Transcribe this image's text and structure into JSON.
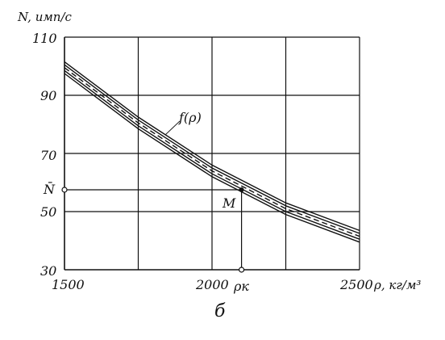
{
  "chart_data": {
    "type": "line",
    "ylabel": "N, имп/с",
    "xlabel": "ρ, кг/м³",
    "x_ticks": [
      "1500",
      "2000",
      "2500"
    ],
    "y_ticks": [
      "110",
      "90",
      "70",
      "50",
      "30"
    ],
    "xlim": [
      1500,
      2500
    ],
    "ylim": [
      30,
      110
    ],
    "grid": true,
    "series": [
      {
        "style": "solid",
        "x": [
          1500,
          1750,
          2000,
          2250,
          2500
        ],
        "y": [
          101.5,
          82.5,
          66.0,
          53.0,
          43.5
        ]
      },
      {
        "style": "solid",
        "x": [
          1500,
          1750,
          2000,
          2250,
          2500
        ],
        "y": [
          100.5,
          81.5,
          65.0,
          52.0,
          42.5
        ]
      },
      {
        "style": "dashed",
        "x": [
          1500,
          1750,
          2000,
          2250,
          2500
        ],
        "y": [
          99.5,
          80.5,
          64.0,
          51.0,
          41.5
        ]
      },
      {
        "style": "solid",
        "x": [
          1500,
          1750,
          2000,
          2250,
          2500
        ],
        "y": [
          98.5,
          79.5,
          63.0,
          50.0,
          40.5
        ]
      },
      {
        "style": "solid",
        "x": [
          1500,
          1750,
          2000,
          2250,
          2500
        ],
        "y": [
          97.5,
          78.5,
          62.0,
          49.0,
          39.5
        ]
      }
    ],
    "annotations": {
      "curve_label": "f(ρ)",
      "point_label": "M",
      "y_marker_label": "N̄",
      "x_marker_label": "ρк",
      "point": {
        "x": 2100,
        "y": 57.5
      }
    },
    "caption": "б"
  }
}
